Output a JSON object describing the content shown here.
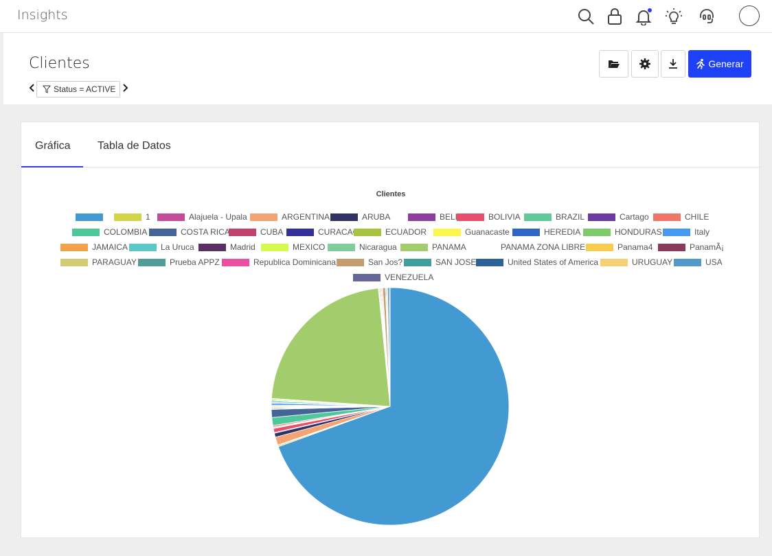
{
  "app": {
    "title": "Insights"
  },
  "topbar_icons": [
    "search-icon",
    "lock-icon",
    "bell-icon",
    "lightbulb-icon",
    "support-icon"
  ],
  "page": {
    "title": "Clientes",
    "filter": "Status = ACTIVE",
    "generate_label": "Generar"
  },
  "tabs": [
    {
      "label": "Gráfica",
      "active": true
    },
    {
      "label": "Tabla de Datos",
      "active": false
    }
  ],
  "colors": {
    "accent": "#1e41f5"
  },
  "chart_data": {
    "type": "pie",
    "title": "Clientes",
    "legend_position": "top",
    "series": [
      {
        "name": "",
        "value": 70.0,
        "color": "#4399d1"
      },
      {
        "name": "1",
        "value": 0.15,
        "color": "#d4d44a"
      },
      {
        "name": "Alajuela - Upala",
        "value": 0.1,
        "color": "#c44a9a"
      },
      {
        "name": "ARGENTINA",
        "value": 1.1,
        "color": "#f4a474"
      },
      {
        "name": "ARUBA",
        "value": 0.55,
        "color": "#2f3263"
      },
      {
        "name": "BELIZE",
        "value": 0.1,
        "color": "#8d3ea0"
      },
      {
        "name": "BOLIVIA",
        "value": 0.55,
        "color": "#ea4d6a"
      },
      {
        "name": "BRAZIL",
        "value": 0.1,
        "color": "#60c998"
      },
      {
        "name": "Cartago",
        "value": 0.1,
        "color": "#6a3aa0"
      },
      {
        "name": "CHILE",
        "value": 0.2,
        "color": "#f07467"
      },
      {
        "name": "COLOMBIA",
        "value": 1.1,
        "color": "#4ec79a"
      },
      {
        "name": "COSTA RICA",
        "value": 1.1,
        "color": "#436597"
      },
      {
        "name": "CUBA",
        "value": 0.1,
        "color": "#c1426a"
      },
      {
        "name": "CURACAO",
        "value": 0.1,
        "color": "#353099"
      },
      {
        "name": "ECUADOR",
        "value": 0.1,
        "color": "#a7c342"
      },
      {
        "name": "Guanacaste",
        "value": 0.1,
        "color": "#fbf64c"
      },
      {
        "name": "HEREDIA",
        "value": 0.1,
        "color": "#2f66c6"
      },
      {
        "name": "HONDURAS",
        "value": 0.1,
        "color": "#7ecb6a"
      },
      {
        "name": "Italy",
        "value": 0.25,
        "color": "#4599f2"
      },
      {
        "name": "JAMAICA",
        "value": 0.1,
        "color": "#f2a24c"
      },
      {
        "name": "La Uruca",
        "value": 0.2,
        "color": "#5cc9c9"
      },
      {
        "name": "Madrid",
        "value": 0.1,
        "color": "#5a2f66"
      },
      {
        "name": "MEXICO",
        "value": 0.15,
        "color": "#d3fa4c"
      },
      {
        "name": "Nicaragua",
        "value": 0.1,
        "color": "#7fcc9c"
      },
      {
        "name": "PANAMA",
        "value": 22.5,
        "color": "#a3cc6c"
      },
      {
        "name": "PANAMA ZONA LIBRE",
        "value": 0.1,
        "color": "#ffffff"
      },
      {
        "name": "Panama4",
        "value": 0.1,
        "color": "#f8cc4c"
      },
      {
        "name": "PanamÃ¡",
        "value": 0.1,
        "color": "#8c3a5c"
      },
      {
        "name": "PARAGUAY",
        "value": 0.1,
        "color": "#d2cc74"
      },
      {
        "name": "Prueba APPZ",
        "value": 0.1,
        "color": "#509d99"
      },
      {
        "name": "Republica Dominicana",
        "value": 0.1,
        "color": "#ec4ea0"
      },
      {
        "name": "San Jos?",
        "value": 0.35,
        "color": "#c59c6c"
      },
      {
        "name": "SAN JOSE",
        "value": 0.1,
        "color": "#40a0a0"
      },
      {
        "name": "United States of America",
        "value": 0.1,
        "color": "#2c6199"
      },
      {
        "name": "URUGUAY",
        "value": 0.1,
        "color": "#f8d074"
      },
      {
        "name": "USA",
        "value": 0.25,
        "color": "#5499cc"
      },
      {
        "name": "VENEZUELA",
        "value": 0.1,
        "color": "#636899"
      }
    ]
  }
}
